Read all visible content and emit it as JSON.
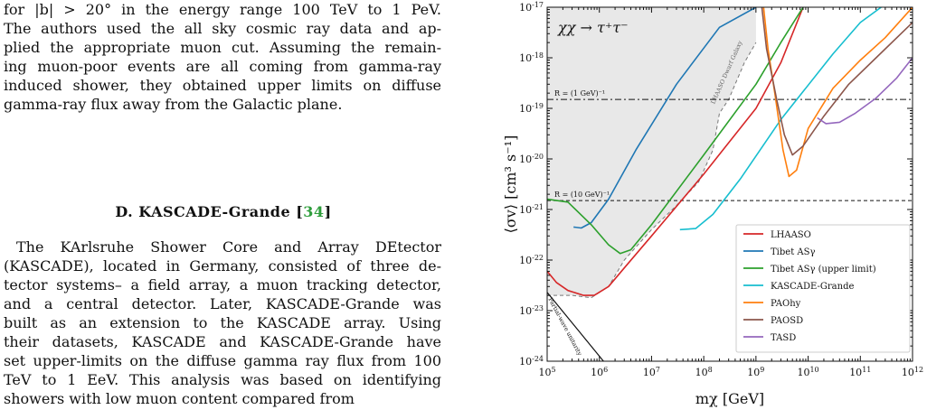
{
  "text": {
    "intro_lines": [
      "for |b| > 20° in the energy range 100 TeV to 1 PeV.",
      "The authors used the all sky cosmic ray data and ap-",
      "plied the appropriate muon cut. Assuming the remain-",
      "ing muon-poor events are all coming from gamma-ray",
      "induced shower, they obtained upper limits on diffuse",
      "gamma-ray flux away from the Galactic plane."
    ],
    "section_heading": "D.   KASCADE-Grande [",
    "section_ref": "34",
    "section_heading_close": "]",
    "body_lines": [
      "The KArlsruhe Shower Core and Array DEtector",
      "(KASCADE), located in Germany, consisted of three de-",
      "tector systems– a field array, a muon tracking detector,",
      "and a central detector. Later, KASCADE-Grande was",
      "built as an extension to the KASCADE array. Using",
      "their datasets, KASCADE and KASCADE-Grande have",
      "set upper-limits on the diffuse gamma ray flux from 100",
      "TeV to 1 EeV. This analysis was based on identifying",
      "showers with low muon content compared from"
    ]
  },
  "chart_data": {
    "type": "line",
    "title": "χχ → τ⁺τ⁻",
    "xlabel": "m_χ [GeV]",
    "ylabel": "⟨σv⟩ [cm³ s⁻¹]",
    "x_scale": "log",
    "y_scale": "log",
    "xlim": [
      100000,
      1000000000000
    ],
    "ylim": [
      1e-24,
      1e-17
    ],
    "x_ticks": [
      "10^5",
      "10^6",
      "10^7",
      "10^8",
      "10^9",
      "10^10",
      "10^11",
      "10^12"
    ],
    "y_ticks": [
      "10^-24",
      "10^-23",
      "10^-22",
      "10^-21",
      "10^-20",
      "10^-19",
      "10^-18",
      "10^-17"
    ],
    "legend_position": "lower-right",
    "series": [
      {
        "name": "LHAASO",
        "color": "#d62728",
        "points": [
          [
            100000,
            6e-23
          ],
          [
            150000,
            3.6e-23
          ],
          [
            250000,
            2.5e-23
          ],
          [
            500000,
            2e-23
          ],
          [
            800000,
            2e-23
          ],
          [
            1500000,
            3e-23
          ],
          [
            3000000,
            7e-23
          ],
          [
            10000000,
            3e-22
          ],
          [
            100000000,
            5e-21
          ],
          [
            1000000000,
            1e-19
          ],
          [
            3000000000,
            8e-19
          ],
          [
            8000000000,
            1e-17
          ]
        ]
      },
      {
        "name": "Tibet AS_γ",
        "color": "#1f77b4",
        "points": [
          [
            320000,
            4.5e-22
          ],
          [
            450000,
            4.3e-22
          ],
          [
            700000,
            5.5e-22
          ],
          [
            1500000,
            1.6e-21
          ],
          [
            5000000,
            1.5e-20
          ],
          [
            30000000,
            3e-19
          ],
          [
            200000000,
            4e-18
          ],
          [
            1000000000,
            1e-17
          ]
        ]
      },
      {
        "name": "Tibet AS_γ (upper limit)",
        "color": "#2ca02c",
        "points": [
          [
            100000,
            1.6e-21
          ],
          [
            250000,
            1.4e-21
          ],
          [
            700000,
            5e-22
          ],
          [
            1500000,
            2e-22
          ],
          [
            2500000,
            1.35e-22
          ],
          [
            4000000,
            1.6e-22
          ],
          [
            10000000,
            5e-22
          ],
          [
            100000000,
            1.2e-20
          ],
          [
            1000000000,
            3e-19
          ],
          [
            3000000000,
            2e-18
          ],
          [
            8000000000,
            1e-17
          ]
        ]
      },
      {
        "name": "KASCADE-Grande",
        "color": "#17becf",
        "points": [
          [
            35000000,
            4e-22
          ],
          [
            70000000,
            4.2e-22
          ],
          [
            150000000,
            8e-22
          ],
          [
            500000000,
            4e-21
          ],
          [
            3000000000,
            6e-20
          ],
          [
            30000000000,
            1.2e-18
          ],
          [
            100000000000,
            5e-18
          ],
          [
            250000000000,
            1e-17
          ]
        ]
      },
      {
        "name": "PAOhy",
        "color": "#ff7f0e",
        "points": [
          [
            1400000000,
            1e-17
          ],
          [
            1700000000,
            1.5e-18
          ],
          [
            2300000000,
            2e-19
          ],
          [
            3300000000,
            1.5e-20
          ],
          [
            4300000000,
            4.5e-21
          ],
          [
            6000000000,
            6e-21
          ],
          [
            10000000000,
            4e-20
          ],
          [
            30000000000,
            2.5e-19
          ],
          [
            100000000000,
            9e-19
          ],
          [
            300000000000,
            2.5e-18
          ],
          [
            1000000000000,
            1e-17
          ]
        ]
      },
      {
        "name": "PAOSD",
        "color": "#8c564b",
        "points": [
          [
            1300000000,
            1e-17
          ],
          [
            1600000000,
            1.5e-18
          ],
          [
            2500000000,
            1.5e-19
          ],
          [
            3500000000,
            3e-20
          ],
          [
            5000000000,
            1.2e-20
          ],
          [
            8000000000,
            1.8e-20
          ],
          [
            20000000000,
            7e-20
          ],
          [
            60000000000,
            3e-19
          ],
          [
            200000000000,
            1e-18
          ],
          [
            1000000000000,
            5e-18
          ]
        ]
      },
      {
        "name": "TASD",
        "color": "#9467bd",
        "points": [
          [
            15000000000,
            6.5e-20
          ],
          [
            22000000000,
            5e-20
          ],
          [
            40000000000,
            5.3e-20
          ],
          [
            80000000000,
            8e-20
          ],
          [
            200000000000,
            1.6e-19
          ],
          [
            500000000000,
            4e-19
          ],
          [
            1000000000000,
            1e-18
          ]
        ]
      }
    ],
    "reference_lines": [
      {
        "label": "R = (1 GeV)⁻¹",
        "y": 1.5e-19,
        "style": "dashdot"
      },
      {
        "label": "R = (10 GeV)⁻¹",
        "y": 1.5e-21,
        "style": "dashed"
      }
    ],
    "shaded_region": {
      "label": "LHAASO Dwarf Galaxy",
      "color": "#e8e8e8",
      "boundary": [
        [
          100000,
          2e-23
        ],
        [
          300000,
          2e-23
        ],
        [
          700000,
          1.8e-23
        ],
        [
          1500000,
          3e-23
        ],
        [
          3000000,
          1e-22
        ],
        [
          10000000,
          4e-22
        ],
        [
          30000000,
          1.2e-21
        ],
        [
          80000000,
          3.5e-21
        ],
        [
          150000000,
          1.5e-20
        ],
        [
          200000000,
          8e-20
        ],
        [
          300000000,
          1.5e-19
        ],
        [
          600000000,
          8e-19
        ],
        [
          1000000000,
          2e-18
        ]
      ]
    },
    "unitarity": {
      "label": "Partial-wave unitarity"
    }
  }
}
